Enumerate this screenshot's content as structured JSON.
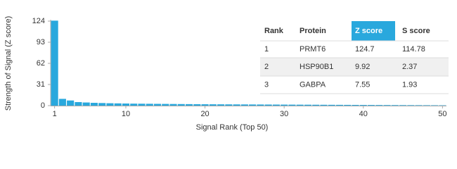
{
  "chart_data": {
    "type": "bar",
    "x_label": "Signal Rank (Top 50)",
    "y_label": "Strength of Signal (Z score)",
    "x": [
      1,
      2,
      3,
      4,
      5,
      6,
      7,
      8,
      9,
      10,
      11,
      12,
      13,
      14,
      15,
      16,
      17,
      18,
      19,
      20,
      21,
      22,
      23,
      24,
      25,
      26,
      27,
      28,
      29,
      30,
      31,
      32,
      33,
      34,
      35,
      36,
      37,
      38,
      39,
      40,
      41,
      42,
      43,
      44,
      45,
      46,
      47,
      48,
      49,
      50
    ],
    "values": [
      124.7,
      9.92,
      7.55,
      5.2,
      4.6,
      4.1,
      3.8,
      3.5,
      3.3,
      3.1,
      2.9,
      2.8,
      2.7,
      2.6,
      2.5,
      2.4,
      2.3,
      2.2,
      2.1,
      2.0,
      1.95,
      1.9,
      1.85,
      1.8,
      1.75,
      1.7,
      1.65,
      1.6,
      1.55,
      1.5,
      1.45,
      1.4,
      1.35,
      1.3,
      1.25,
      1.2,
      1.15,
      1.1,
      1.05,
      1.0,
      0.95,
      0.9,
      0.85,
      0.8,
      0.75,
      0.7,
      0.65,
      0.6,
      0.55,
      0.5
    ],
    "color": "#29a8dd",
    "xlim": [
      0.5,
      50.5
    ],
    "xticks": [
      1,
      10,
      20,
      30,
      40,
      50
    ],
    "ylim": [
      0,
      124
    ],
    "yticks": [
      0,
      31,
      62,
      93,
      124
    ],
    "table": {
      "columns": [
        "Rank",
        "Protein",
        "Z score",
        "S score"
      ],
      "rows": [
        [
          1,
          "PRMT6",
          124.7,
          114.78
        ],
        [
          2,
          "HSP90B1",
          9.92,
          2.37
        ],
        [
          3,
          "GABPA",
          7.55,
          1.93
        ]
      ]
    }
  }
}
